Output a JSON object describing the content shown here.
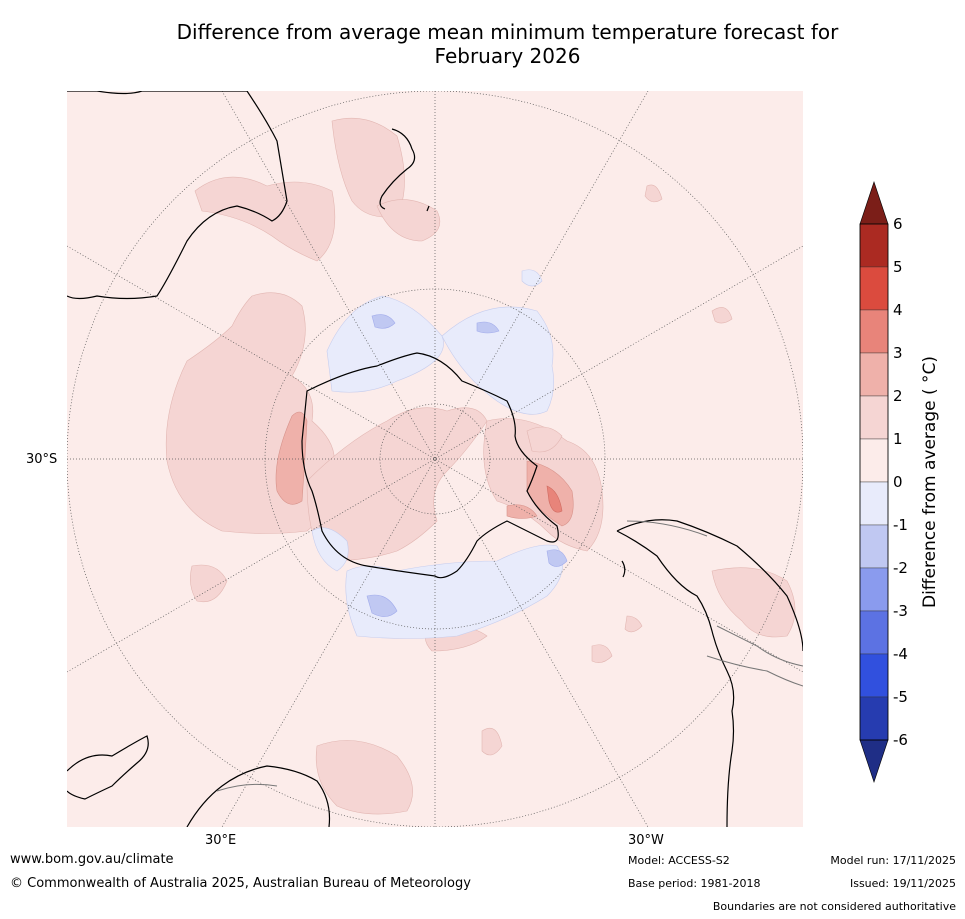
{
  "title_line1": "Difference from average mean minimum temperature forecast for",
  "title_line2": "February 2026",
  "axis_labels": {
    "lat": "30°S",
    "lon_east": "30°E",
    "lon_west": "30°W"
  },
  "colorbar": {
    "label": "Difference from average ( °C)",
    "ticks": [
      "6",
      "5",
      "4",
      "3",
      "2",
      "1",
      "0",
      "-1",
      "-2",
      "-3",
      "-4",
      "-5",
      "-6"
    ],
    "colors_top_to_bottom": [
      "#ab2a22",
      "#db4b3e",
      "#e8847a",
      "#efb1aa",
      "#f5d5d3",
      "#fcecea",
      "#e8ebfb",
      "#c0c8f2",
      "#8a9bee",
      "#5c72e3",
      "#3150de",
      "#263cb0"
    ],
    "over_color": "#7b1e18",
    "under_color": "#1f2e86"
  },
  "footer": {
    "website": "www.bom.gov.au/climate",
    "copyright": "© Commonwealth of Australia 2025, Australian Bureau of Meteorology",
    "model": "Model: ACCESS-S2",
    "base_period": "Base period: 1981-2018",
    "model_run": "Model run: 17/11/2025",
    "issued": "Issued: 19/11/2025",
    "disclaimer": "Boundaries are not considered authoritative"
  },
  "colors": {
    "background_anomaly": "#fcecea",
    "land_outline": "#000000"
  }
}
